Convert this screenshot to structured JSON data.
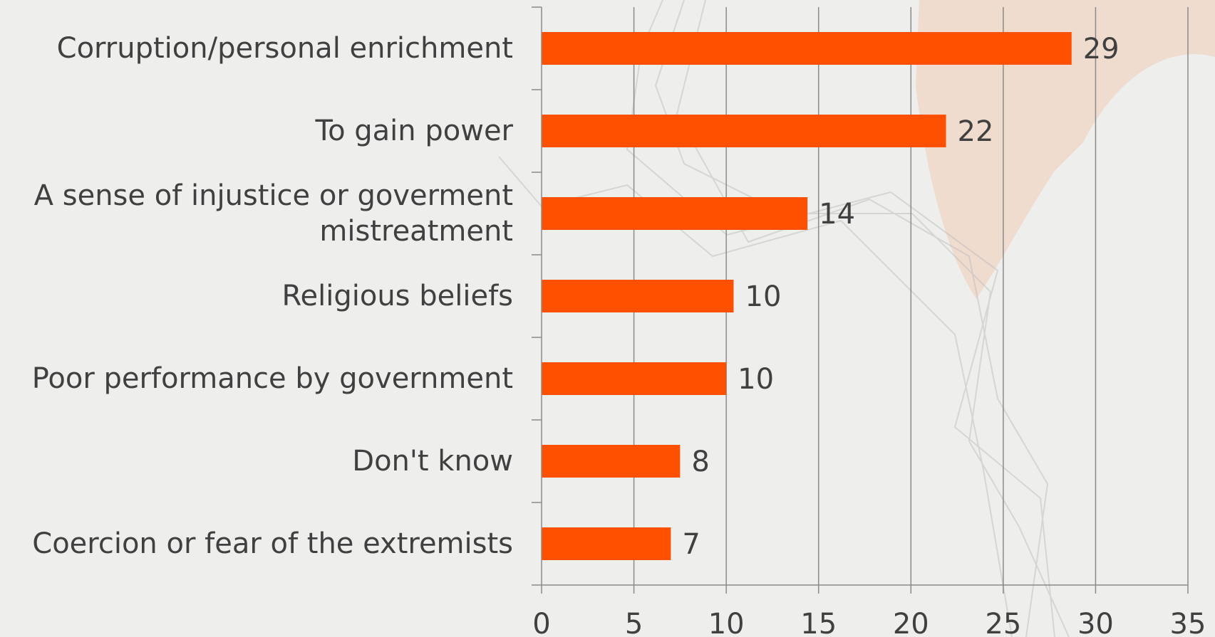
{
  "colors": {
    "bar": "#ff5000",
    "grid": "#8a8a8a",
    "text": "#404040",
    "background": "#eeeeec"
  },
  "chart_data": {
    "type": "bar",
    "orientation": "horizontal",
    "title": "",
    "xlabel": "",
    "ylabel": "",
    "xlim": [
      0,
      35
    ],
    "xticks": [
      "0",
      "5",
      "10",
      "15",
      "20",
      "25",
      "30",
      "35"
    ],
    "grid": "vertical",
    "legend": "none",
    "categories": [
      "Corruption/personal enrichment",
      "To gain power",
      "A sense of injustice or goverment mistreatment",
      "Religious beliefs",
      "Poor performance by government",
      "Don't know",
      "Coercion or fear of the extremists"
    ],
    "values": [
      28.7,
      21.9,
      14.4,
      10.4,
      10.0,
      7.5,
      7.0
    ],
    "value_labels": [
      "29",
      "22",
      "14",
      "10",
      "10",
      "8",
      "7"
    ]
  }
}
